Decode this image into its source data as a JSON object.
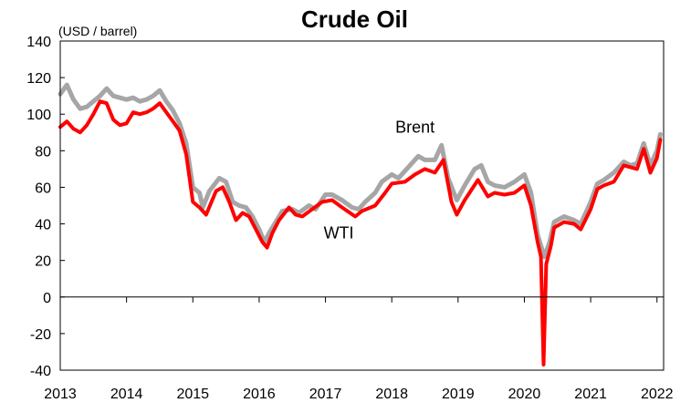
{
  "chart_data": {
    "type": "line",
    "title": "Crude Oil",
    "unit_label": "(USD / barrel)",
    "xlabel": "",
    "ylabel": "",
    "x_ticks": [
      "2013",
      "2014",
      "2015",
      "2016",
      "2017",
      "2018",
      "2019",
      "2020",
      "2021",
      "2022"
    ],
    "y_ticks": [
      "140",
      "120",
      "100",
      "80",
      "60",
      "40",
      "20",
      "0",
      "-20",
      "-40"
    ],
    "xlim": [
      2013.0,
      2022.1
    ],
    "ylim": [
      -40,
      140
    ],
    "grid": false,
    "legend": "none (series labelled inline)",
    "series": [
      {
        "name": "Brent",
        "color": "#a6a6a6",
        "points": [
          [
            2013.0,
            111
          ],
          [
            2013.1,
            116
          ],
          [
            2013.2,
            108
          ],
          [
            2013.3,
            103
          ],
          [
            2013.4,
            104
          ],
          [
            2013.5,
            107
          ],
          [
            2013.6,
            110
          ],
          [
            2013.7,
            114
          ],
          [
            2013.8,
            110
          ],
          [
            2013.9,
            109
          ],
          [
            2014.0,
            108
          ],
          [
            2014.1,
            109
          ],
          [
            2014.2,
            107
          ],
          [
            2014.3,
            108
          ],
          [
            2014.4,
            110
          ],
          [
            2014.5,
            113
          ],
          [
            2014.6,
            107
          ],
          [
            2014.7,
            102
          ],
          [
            2014.8,
            95
          ],
          [
            2014.9,
            84
          ],
          [
            2015.0,
            60
          ],
          [
            2015.1,
            57
          ],
          [
            2015.15,
            49
          ],
          [
            2015.25,
            58
          ],
          [
            2015.4,
            65
          ],
          [
            2015.5,
            63
          ],
          [
            2015.6,
            52
          ],
          [
            2015.7,
            50
          ],
          [
            2015.8,
            49
          ],
          [
            2015.9,
            44
          ],
          [
            2016.0,
            37
          ],
          [
            2016.08,
            30
          ],
          [
            2016.15,
            35
          ],
          [
            2016.25,
            41
          ],
          [
            2016.35,
            47
          ],
          [
            2016.5,
            48
          ],
          [
            2016.6,
            46
          ],
          [
            2016.75,
            50
          ],
          [
            2016.85,
            48
          ],
          [
            2017.0,
            56
          ],
          [
            2017.1,
            56
          ],
          [
            2017.25,
            53
          ],
          [
            2017.4,
            49
          ],
          [
            2017.5,
            48
          ],
          [
            2017.6,
            52
          ],
          [
            2017.75,
            57
          ],
          [
            2017.85,
            63
          ],
          [
            2018.0,
            67
          ],
          [
            2018.1,
            65
          ],
          [
            2018.25,
            71
          ],
          [
            2018.4,
            77
          ],
          [
            2018.5,
            75
          ],
          [
            2018.65,
            75
          ],
          [
            2018.75,
            83
          ],
          [
            2018.85,
            65
          ],
          [
            2018.98,
            53
          ],
          [
            2019.1,
            61
          ],
          [
            2019.25,
            70
          ],
          [
            2019.35,
            72
          ],
          [
            2019.45,
            63
          ],
          [
            2019.55,
            61
          ],
          [
            2019.7,
            60
          ],
          [
            2019.85,
            63
          ],
          [
            2020.0,
            67
          ],
          [
            2020.1,
            57
          ],
          [
            2020.2,
            34
          ],
          [
            2020.3,
            22
          ],
          [
            2020.38,
            30
          ],
          [
            2020.45,
            41
          ],
          [
            2020.6,
            44
          ],
          [
            2020.75,
            42
          ],
          [
            2020.85,
            40
          ],
          [
            2021.0,
            52
          ],
          [
            2021.1,
            62
          ],
          [
            2021.2,
            64
          ],
          [
            2021.35,
            68
          ],
          [
            2021.5,
            74
          ],
          [
            2021.6,
            72
          ],
          [
            2021.7,
            73
          ],
          [
            2021.8,
            84
          ],
          [
            2021.9,
            72
          ],
          [
            2022.0,
            80
          ],
          [
            2022.05,
            89
          ]
        ]
      },
      {
        "name": "WTI",
        "color": "#ff0000",
        "points": [
          [
            2013.0,
            93
          ],
          [
            2013.1,
            96
          ],
          [
            2013.2,
            92
          ],
          [
            2013.3,
            90
          ],
          [
            2013.4,
            94
          ],
          [
            2013.5,
            100
          ],
          [
            2013.6,
            107
          ],
          [
            2013.7,
            106
          ],
          [
            2013.8,
            97
          ],
          [
            2013.9,
            94
          ],
          [
            2014.0,
            95
          ],
          [
            2014.1,
            101
          ],
          [
            2014.2,
            100
          ],
          [
            2014.3,
            101
          ],
          [
            2014.4,
            103
          ],
          [
            2014.5,
            106
          ],
          [
            2014.6,
            101
          ],
          [
            2014.7,
            96
          ],
          [
            2014.8,
            91
          ],
          [
            2014.9,
            78
          ],
          [
            2015.0,
            52
          ],
          [
            2015.1,
            49
          ],
          [
            2015.2,
            45
          ],
          [
            2015.35,
            58
          ],
          [
            2015.45,
            60
          ],
          [
            2015.55,
            52
          ],
          [
            2015.65,
            42
          ],
          [
            2015.75,
            46
          ],
          [
            2015.85,
            44
          ],
          [
            2015.95,
            37
          ],
          [
            2016.05,
            30
          ],
          [
            2016.12,
            27
          ],
          [
            2016.2,
            35
          ],
          [
            2016.3,
            42
          ],
          [
            2016.45,
            49
          ],
          [
            2016.55,
            45
          ],
          [
            2016.65,
            44
          ],
          [
            2016.8,
            48
          ],
          [
            2016.95,
            52
          ],
          [
            2017.1,
            53
          ],
          [
            2017.25,
            49
          ],
          [
            2017.45,
            44
          ],
          [
            2017.55,
            47
          ],
          [
            2017.75,
            50
          ],
          [
            2017.9,
            57
          ],
          [
            2018.0,
            62
          ],
          [
            2018.2,
            63
          ],
          [
            2018.35,
            67
          ],
          [
            2018.5,
            70
          ],
          [
            2018.65,
            68
          ],
          [
            2018.78,
            75
          ],
          [
            2018.9,
            52
          ],
          [
            2018.98,
            45
          ],
          [
            2019.1,
            53
          ],
          [
            2019.3,
            64
          ],
          [
            2019.45,
            55
          ],
          [
            2019.55,
            57
          ],
          [
            2019.7,
            56
          ],
          [
            2019.85,
            57
          ],
          [
            2020.0,
            61
          ],
          [
            2020.1,
            50
          ],
          [
            2020.2,
            30
          ],
          [
            2020.25,
            22
          ],
          [
            2020.29,
            -37
          ],
          [
            2020.33,
            18
          ],
          [
            2020.4,
            28
          ],
          [
            2020.45,
            38
          ],
          [
            2020.6,
            41
          ],
          [
            2020.75,
            40
          ],
          [
            2020.85,
            37
          ],
          [
            2021.0,
            48
          ],
          [
            2021.1,
            59
          ],
          [
            2021.2,
            61
          ],
          [
            2021.35,
            63
          ],
          [
            2021.5,
            72
          ],
          [
            2021.6,
            71
          ],
          [
            2021.7,
            70
          ],
          [
            2021.8,
            81
          ],
          [
            2021.9,
            68
          ],
          [
            2022.0,
            76
          ],
          [
            2022.05,
            86
          ]
        ]
      }
    ],
    "annotations": [
      {
        "text": "Brent",
        "x": 2018.35,
        "y": 90
      },
      {
        "text": "WTI",
        "x": 2017.2,
        "y": 32
      }
    ]
  }
}
